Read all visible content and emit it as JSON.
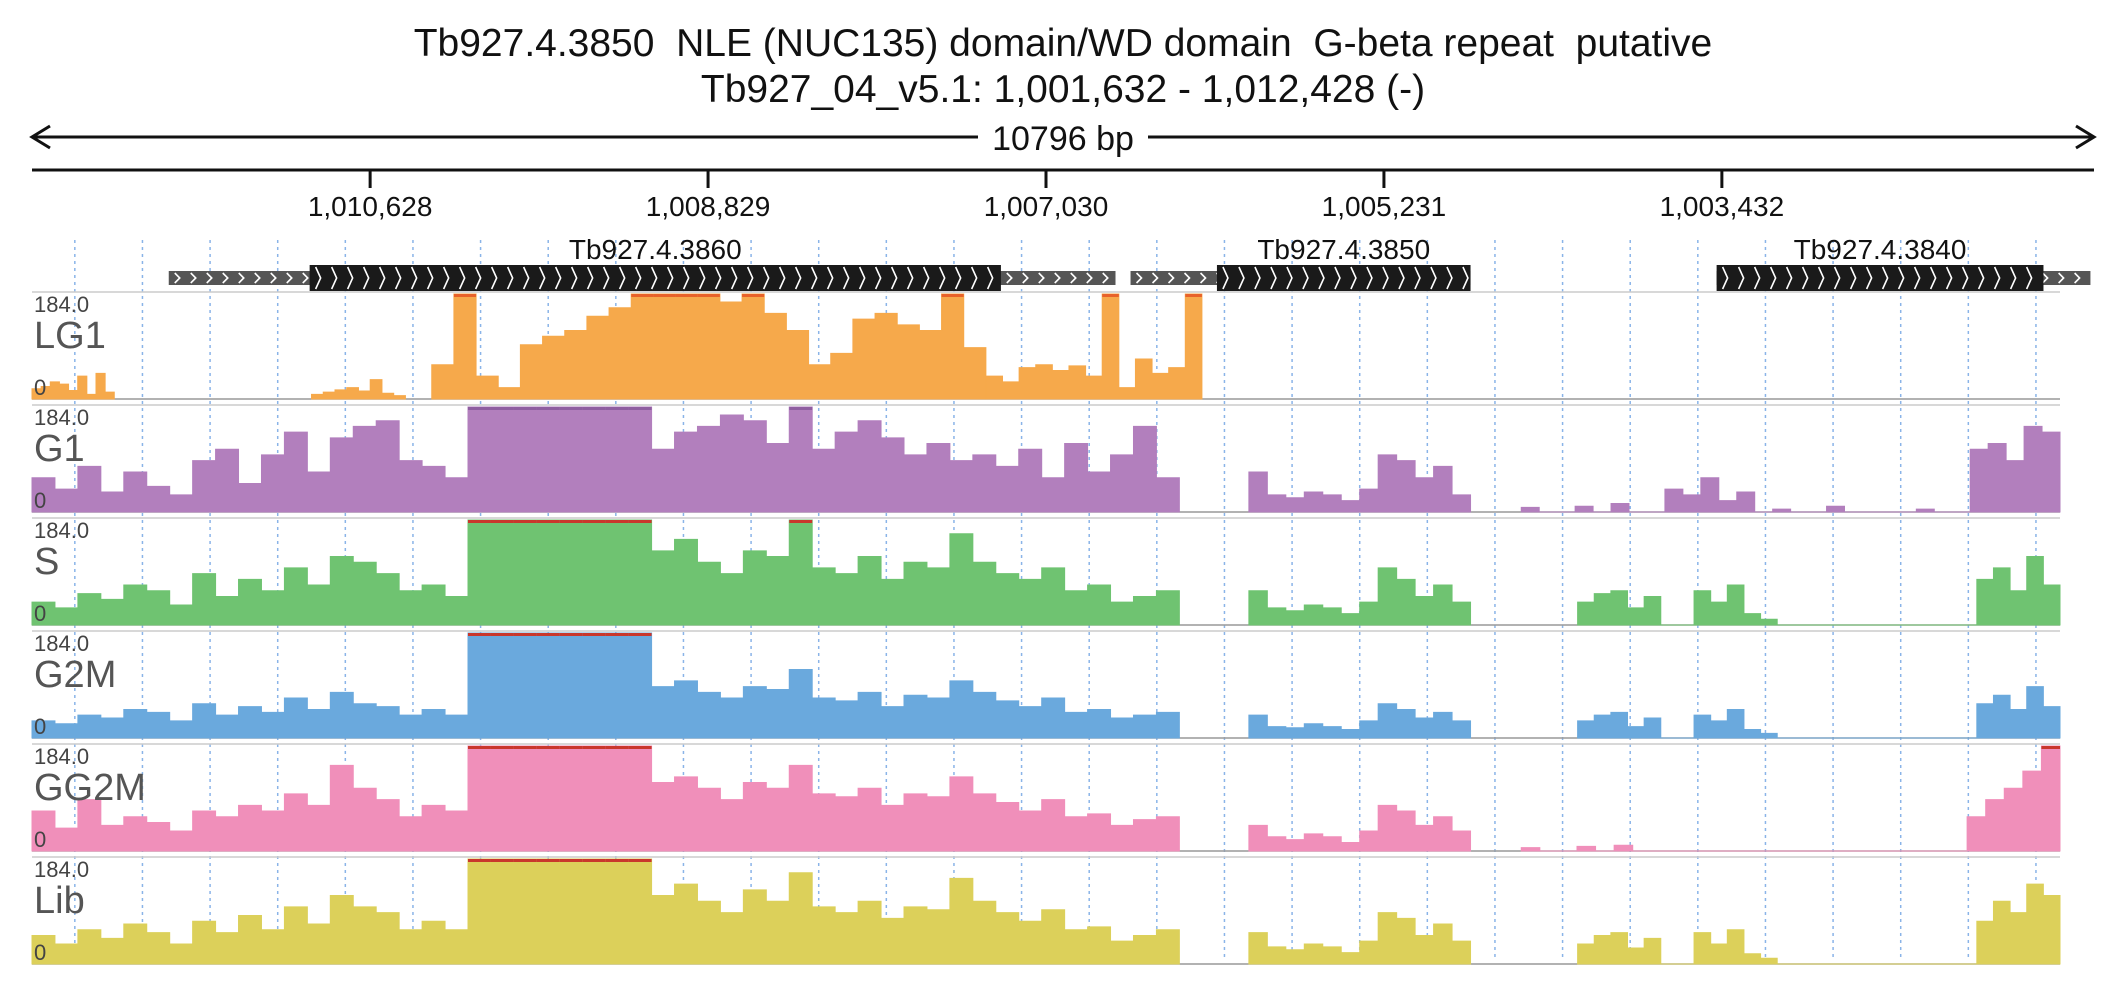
{
  "header": {
    "title": "Tb927.4.3850  NLE (NUC135) domain/WD domain  G-beta repeat  putative",
    "location": "Tb927_04_v5.1: 1,001,632 - 1,012,428 (-)",
    "span_label": "10796 bp"
  },
  "chart_data": {
    "type": "area",
    "x_axis": {
      "ticks": [
        "1,010,628",
        "1,008,829",
        "1,007,030",
        "1,005,231",
        "1,003,432"
      ],
      "range_label": "1,001,632 - 1,012,428 (-)",
      "grid": true
    },
    "genes": [
      {
        "name": "Tb927.4.3860",
        "utr_start": 1011700,
        "cds_start": 1010950,
        "cds_end": 1007270,
        "utr_end": 1006660
      },
      {
        "name": "Tb927.4.3850",
        "utr_start": 1006580,
        "cds_start": 1006120,
        "cds_end": 1004770,
        "utr_end": 1004770
      },
      {
        "name": "Tb927.4.3840",
        "utr_start": 1003460,
        "cds_start": 1003460,
        "cds_end": 1001720,
        "utr_end": 1001470
      }
    ],
    "tracks": [
      {
        "name": "LG1",
        "ymax_label": "184.0",
        "ymin_label": "0",
        "color": "#f6a94b",
        "clip_color": "#e8622a",
        "segments": [
          {
            "start": 1012428,
            "end": 1011990,
            "values": [
              18,
              22,
              30,
              26,
              15,
              40,
              8,
              45,
              12
            ]
          },
          {
            "start": 1010940,
            "end": 1010440,
            "values": [
              8,
              12,
              16,
              20,
              14,
              34,
              10,
              6
            ]
          },
          {
            "start": 1010300,
            "end": 1007350,
            "values": [
              60,
              184,
              40,
              20,
              95,
              110,
              120,
              145,
              160,
              184,
              184,
              184,
              184,
              170,
              184,
              150,
              120,
              60,
              80,
              140,
              150,
              130,
              120,
              184,
              90
            ]
          },
          {
            "start": 1007350,
            "end": 1006200,
            "values": [
              40,
              30,
              55,
              60,
              50,
              58,
              40,
              184,
              20,
              70,
              45,
              55,
              184
            ]
          }
        ]
      },
      {
        "name": "G1",
        "ymax_label": "184.0",
        "ymin_label": "0",
        "color": "#b27fbd",
        "clip_color": "#8e5ea0",
        "segments": [
          {
            "start": 1012428,
            "end": 1006320,
            "values": [
              60,
              40,
              80,
              35,
              70,
              45,
              30,
              90,
              110,
              50,
              100,
              140,
              70,
              130,
              150,
              160,
              90,
              80,
              60,
              184,
              184,
              184,
              184,
              184,
              184,
              184,
              184,
              110,
              140,
              150,
              170,
              160,
              120,
              184,
              110,
              140,
              160,
              130,
              100,
              120,
              90,
              100,
              80,
              110,
              60,
              120,
              70,
              100,
              150,
              60
            ]
          },
          {
            "start": 1005950,
            "end": 1004770,
            "values": [
              70,
              30,
              25,
              35,
              30,
              20,
              40,
              100,
              90,
              60,
              80,
              30
            ]
          },
          {
            "start": 1004500,
            "end": 1001632,
            "values": [
              8,
              0,
              0,
              10,
              0,
              15,
              0,
              0,
              40,
              30,
              60,
              20,
              35,
              0,
              5,
              0,
              0,
              10,
              0,
              0,
              0,
              0,
              5,
              0,
              0,
              110,
              120,
              90,
              150,
              140
            ]
          }
        ]
      },
      {
        "name": "S",
        "ymax_label": "184.0",
        "ymin_label": "0",
        "color": "#6fc371",
        "clip_color": "#c9372c",
        "segments": [
          {
            "start": 1012428,
            "end": 1006320,
            "values": [
              40,
              30,
              55,
              45,
              70,
              60,
              35,
              90,
              50,
              80,
              60,
              100,
              70,
              120,
              110,
              90,
              60,
              70,
              50,
              184,
              184,
              184,
              184,
              184,
              184,
              184,
              184,
              130,
              150,
              110,
              90,
              130,
              120,
              184,
              100,
              90,
              120,
              80,
              110,
              100,
              160,
              110,
              90,
              80,
              100,
              60,
              70,
              40,
              50,
              60
            ]
          },
          {
            "start": 1005950,
            "end": 1004770,
            "values": [
              60,
              30,
              25,
              35,
              30,
              20,
              40,
              100,
              80,
              50,
              70,
              40
            ]
          },
          {
            "start": 1004200,
            "end": 1001632,
            "values": [
              40,
              55,
              60,
              30,
              50,
              0,
              0,
              60,
              40,
              70,
              20,
              10,
              0,
              0,
              0,
              0,
              0,
              0,
              0,
              0,
              0,
              0,
              0,
              0,
              80,
              100,
              60,
              120,
              70
            ]
          }
        ]
      },
      {
        "name": "G2M",
        "ymax_label": "184.0",
        "ymin_label": "0",
        "color": "#6aa9dd",
        "clip_color": "#c9372c",
        "segments": [
          {
            "start": 1012428,
            "end": 1006320,
            "values": [
              30,
              25,
              40,
              35,
              50,
              45,
              30,
              60,
              40,
              55,
              45,
              70,
              50,
              80,
              60,
              55,
              40,
              50,
              40,
              184,
              184,
              184,
              184,
              184,
              184,
              184,
              184,
              90,
              100,
              80,
              70,
              90,
              85,
              120,
              70,
              65,
              80,
              55,
              75,
              70,
              100,
              80,
              65,
              55,
              70,
              45,
              50,
              35,
              40,
              45
            ]
          },
          {
            "start": 1005950,
            "end": 1004770,
            "values": [
              40,
              20,
              18,
              25,
              20,
              15,
              30,
              60,
              50,
              35,
              45,
              30
            ]
          },
          {
            "start": 1004200,
            "end": 1001632,
            "values": [
              30,
              40,
              45,
              20,
              35,
              0,
              0,
              40,
              30,
              50,
              15,
              8,
              0,
              0,
              0,
              0,
              0,
              0,
              0,
              0,
              0,
              0,
              0,
              0,
              60,
              75,
              50,
              90,
              55
            ]
          }
        ]
      },
      {
        "name": "GG2M",
        "ymax_label": "184.0",
        "ymin_label": "0",
        "color": "#f08fba",
        "clip_color": "#c9372c",
        "segments": [
          {
            "start": 1012428,
            "end": 1006320,
            "values": [
              70,
              40,
              90,
              45,
              60,
              50,
              35,
              70,
              60,
              80,
              70,
              100,
              80,
              150,
              110,
              90,
              60,
              80,
              70,
              184,
              184,
              184,
              184,
              184,
              184,
              184,
              184,
              120,
              130,
              110,
              90,
              120,
              110,
              150,
              100,
              95,
              110,
              80,
              100,
              95,
              130,
              100,
              85,
              70,
              90,
              60,
              65,
              45,
              55,
              60
            ]
          },
          {
            "start": 1005950,
            "end": 1004770,
            "values": [
              45,
              25,
              20,
              30,
              25,
              15,
              35,
              80,
              70,
              45,
              60,
              35
            ]
          },
          {
            "start": 1004500,
            "end": 1001632,
            "values": [
              6,
              0,
              0,
              8,
              0,
              10,
              0,
              0,
              0,
              0,
              0,
              0,
              0,
              0,
              0,
              0,
              0,
              0,
              0,
              0,
              0,
              0,
              0,
              0,
              60,
              90,
              110,
              140,
              184
            ]
          }
        ]
      },
      {
        "name": "Lib",
        "ymax_label": "184.0",
        "ymin_label": "0",
        "color": "#dcd05a",
        "clip_color": "#c9372c",
        "segments": [
          {
            "start": 1012428,
            "end": 1006320,
            "values": [
              50,
              35,
              60,
              45,
              70,
              55,
              35,
              75,
              55,
              85,
              60,
              100,
              70,
              120,
              100,
              90,
              60,
              75,
              60,
              184,
              184,
              184,
              184,
              184,
              184,
              184,
              184,
              120,
              140,
              110,
              90,
              130,
              110,
              160,
              100,
              90,
              110,
              80,
              100,
              95,
              150,
              110,
              90,
              75,
              95,
              60,
              65,
              40,
              50,
              60
            ]
          },
          {
            "start": 1005950,
            "end": 1004770,
            "values": [
              55,
              30,
              25,
              35,
              30,
              20,
              40,
              90,
              80,
              50,
              70,
              40
            ]
          },
          {
            "start": 1004200,
            "end": 1001632,
            "values": [
              35,
              50,
              55,
              28,
              45,
              0,
              0,
              55,
              35,
              60,
              18,
              10,
              0,
              0,
              0,
              0,
              0,
              0,
              0,
              0,
              0,
              0,
              0,
              0,
              75,
              110,
              90,
              140,
              120
            ]
          }
        ]
      }
    ]
  }
}
